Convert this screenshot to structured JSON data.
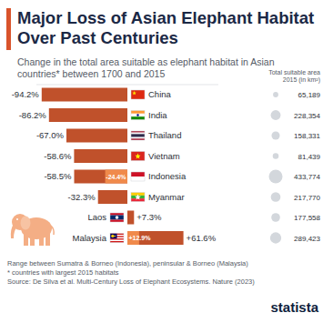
{
  "chart_data": {
    "type": "bar",
    "orientation": "horizontal",
    "title": "Major Loss of Asian Elephant Habitat Over Past Centuries",
    "subtitle": "Change in the total area suitable as elephant habitat in Asian countries* between 1700 and 2015",
    "categories": [
      "China",
      "India",
      "Thailand",
      "Vietnam",
      "Indonesia",
      "Myanmar",
      "Laos",
      "Malaysia"
    ],
    "values": [
      -94.2,
      -86.2,
      -67.0,
      -58.6,
      -58.5,
      -32.3,
      7.3,
      61.6
    ],
    "value_labels": [
      "-94.2%",
      "-86.2%",
      "-67.0%",
      "-58.6%",
      "-58.5%",
      "-32.3%",
      "+7.3%",
      "+61.6%"
    ],
    "range_values": [
      null,
      null,
      null,
      null,
      -24.4,
      null,
      null,
      12.9
    ],
    "range_labels": [
      null,
      null,
      null,
      null,
      "-24.4%",
      null,
      null,
      "+12.9%"
    ],
    "total_area_title": "Total suitable area 2015 (in km²)",
    "total_area": [
      65189,
      228354,
      158331,
      81439,
      433774,
      217770,
      177558,
      289423
    ],
    "total_area_labels": [
      "65,189",
      "228,354",
      "158,331",
      "81,439",
      "433,774",
      "217,770",
      "177,558",
      "289,423"
    ],
    "notes": [
      "Range between Sumatra & Borneo (Indonesia), peninsular & Borneo (Malaysia)",
      "* countries with largest 2015 habitats",
      "Source: De Silva et al. Multi-Century Loss of Elephant Ecosystems. Nature (2023)"
    ],
    "brand": "statista",
    "color": "#c0512b",
    "xlim": [
      -100,
      100
    ],
    "data_labels": true,
    "tick_labels": false,
    "grid": false
  }
}
